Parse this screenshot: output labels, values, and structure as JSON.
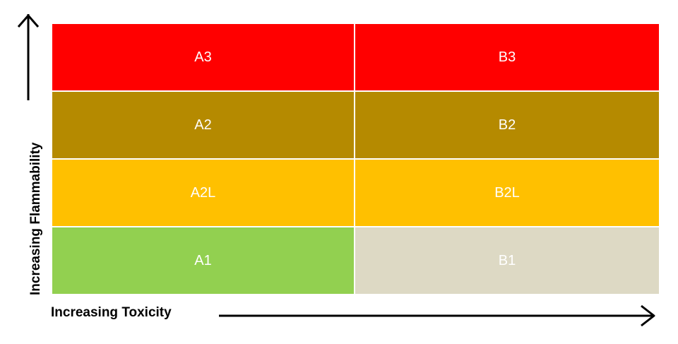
{
  "axes": {
    "y_label": "Increasing Flammability",
    "x_label": "Increasing Toxicity"
  },
  "rows": [
    {
      "color": "#ff0000",
      "cells": [
        {
          "label": "A3",
          "color": "#ff0000"
        },
        {
          "label": "B3",
          "color": "#ff0000"
        }
      ]
    },
    {
      "color": "#b58a00",
      "cells": [
        {
          "label": "A2",
          "color": "#b58a00"
        },
        {
          "label": "B2",
          "color": "#b58a00"
        }
      ]
    },
    {
      "color": "#ffc000",
      "cells": [
        {
          "label": "A2L",
          "color": "#ffc000"
        },
        {
          "label": "B2L",
          "color": "#ffc000"
        }
      ]
    },
    {
      "cells": [
        {
          "label": "A1",
          "color": "#92d050"
        },
        {
          "label": "B1",
          "color": "#ddd9c4"
        }
      ]
    }
  ]
}
